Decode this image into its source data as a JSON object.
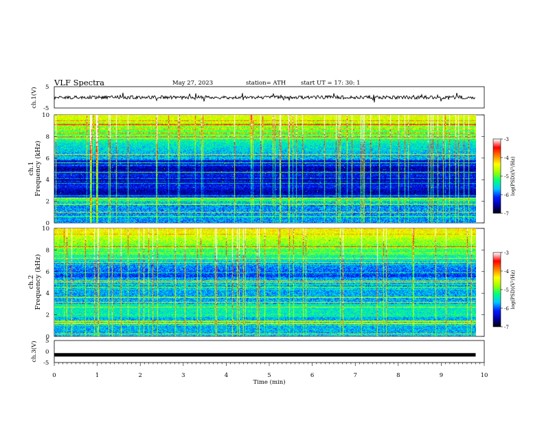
{
  "header": {
    "title": "VLF  Spectra",
    "date": "May 27, 2023",
    "station": "station= ATH",
    "start_ut": "start  UT  =    17: 30: 1"
  },
  "chart_data": [
    {
      "id": "ch1_waveform",
      "type": "line",
      "ylabel": "ch.1(V)",
      "ylim": [
        -5,
        5
      ],
      "yticks": [
        "5",
        "-5"
      ],
      "trace_level": 0,
      "trace_color": "#000000"
    },
    {
      "id": "ch1_spectrogram",
      "type": "heatmap",
      "ylabel_line1": "ch.1",
      "ylabel_line2": "Frequency  (kHz)",
      "ylim": [
        0,
        10
      ],
      "yticks": [
        "0",
        "2",
        "4",
        "6",
        "8",
        "10"
      ],
      "colorbar": {
        "label": "log(PSD)(V²/Hz)",
        "range": [
          -7,
          -3
        ],
        "ticks": [
          "-3",
          "-4",
          "-5",
          "-6",
          "-7"
        ]
      }
    },
    {
      "id": "ch2_spectrogram",
      "type": "heatmap",
      "ylabel_line1": "ch.2",
      "ylabel_line2": "Frequency  (kHz)",
      "ylim": [
        0,
        10
      ],
      "yticks": [
        "0",
        "2",
        "4",
        "6",
        "8",
        "10"
      ],
      "colorbar": {
        "label": "log(PSD)(V²/Hz)",
        "range": [
          -7,
          -3
        ],
        "ticks": [
          "-3",
          "-4",
          "-5",
          "-6",
          "-7"
        ]
      }
    },
    {
      "id": "ch3_waveform",
      "type": "line",
      "ylabel": "ch.3(V)",
      "ylim": [
        -5,
        5
      ],
      "yticks": [
        "5",
        "0",
        "-5"
      ],
      "trace_level": -1.5,
      "trace_color": "#000000"
    }
  ],
  "xaxis": {
    "label": "Time  (min)",
    "xlim": [
      0,
      10
    ],
    "ticks": [
      "0",
      "1",
      "2",
      "3",
      "4",
      "5",
      "6",
      "7",
      "8",
      "9",
      "10"
    ],
    "data_end": 9.8
  },
  "colors": {
    "colormap": [
      "#000000",
      "#0000a0",
      "#0020ff",
      "#00c8ff",
      "#00ff80",
      "#a0ff00",
      "#ffff00",
      "#ff8000",
      "#ff0000",
      "#ffffff"
    ]
  }
}
